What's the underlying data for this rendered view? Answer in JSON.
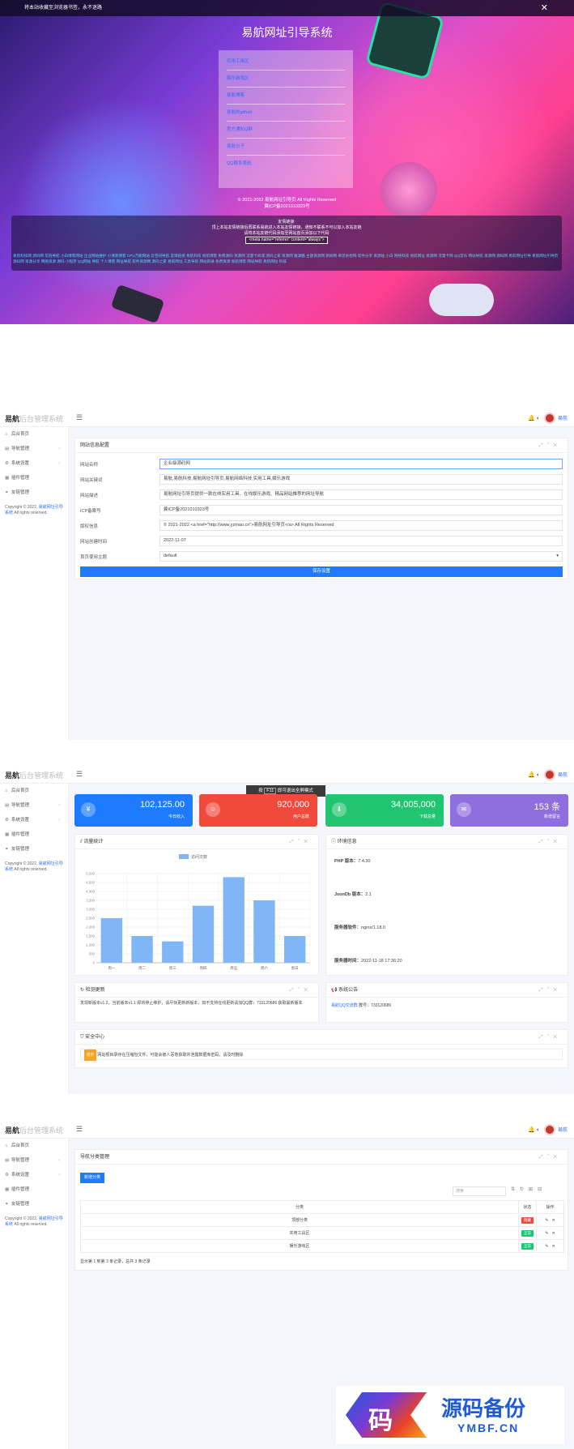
{
  "hero": {
    "topbar_text": "将本站收藏至浏览器书签，永不迷路",
    "close_label": "✕",
    "title": "易航网址引导系统",
    "nav_links": [
      "实用工具区",
      "娱乐游戏区",
      "易航博客",
      "易航的github",
      "官方通知Q群",
      "易航分子",
      "QQ联系易航"
    ],
    "copyright": "© 2021-2022 易航网址引导页 All Rights Reserved",
    "icp": "冀ICP备2021010323号",
    "notice_title": "友情链接:",
    "notice_line1": "顶上本站友情链接后再联系易航进入本站友情链接，通知不联系不可以加入本站友链",
    "notice_line2": "请将本站友链代码添加至网站首页添加以下代码",
    "notice_code": "<meta name=\"referrer\" content=\"always\">",
    "friend_links": "易航科技网 源码网 友链导航 小白博客网站 企业网站维护 小清新博客 CPU万能网站 云空间导航 友情链接 易航科技 易航博客 免费源码 资源网 流量卡商城 源码之家 资源网 雅源酷 主题资源网 新闻网 奇思妙想网 软件分享 资源站 小白 网络科技 易航网址 资源网 流量卡网 QQ音乐 网站导航 资源网 源码网 易航网址引导 易航网址引导页 源码网 资源分享 网络资源 源码 小程序 QQ网站 导航 个人博客 网址导航 软件资源网 源码之家 易航网址 工具导航 网站目录 免费资源 易航博客 网站导航 易航网址 科技"
  },
  "frame1": {
    "sidebar": [
      "后台首页",
      "导航管理",
      "系统设置",
      "插件管理",
      "友链管理"
    ],
    "footer": "Copyright © 2022,",
    "footer_link": "易航网址引导系统",
    "footer_rights": "All rights reserved.",
    "card_title": "网站信息配置",
    "fields": [
      {
        "label": "网站名称",
        "value": "企业级源码网"
      },
      {
        "label": "网站关键词",
        "value": "易航,易航科技,易航网址引导页,易航网络科技,实用工具,娱乐游戏"
      },
      {
        "label": "网站描述",
        "value": "易航网址引导页提供一款在线实用工具、在线娱乐游戏、精品网站推荐的网址导航"
      },
      {
        "label": "ICP备案号",
        "value": "冀ICP备2021010323号"
      },
      {
        "label": "版权信息",
        "value": "© 2021-2022 <a href=\"http://www.yzmao.cn\">易航网址引导页</a> All Rights Reserved"
      },
      {
        "label": "网站创建时间",
        "value": "2022-11-07"
      },
      {
        "label": "首页使用主题",
        "value": "default"
      }
    ],
    "save_label": "保存设置",
    "user": "易航"
  },
  "frame2": {
    "tooltip_prefix": "按",
    "tooltip_key": "F11",
    "tooltip_suffix": "即可退出全屏模式",
    "stats": [
      {
        "value": "102,125.00",
        "label": "今日收入",
        "color": "#1e7bff",
        "icon": "¥"
      },
      {
        "value": "920,000",
        "label": "用户总数",
        "color": "#ef4a3c",
        "icon": "☺"
      },
      {
        "value": "34,005,000",
        "label": "下载总量",
        "color": "#21c470",
        "icon": "⬇"
      },
      {
        "value": "153 条",
        "label": "新增留言",
        "color": "#8f6ee0",
        "icon": "✉"
      }
    ],
    "chart_card_title": "流量统计",
    "info_card_title": "环境信息",
    "info": [
      {
        "label": "PHP 版本：",
        "value": "7.4.30"
      },
      {
        "label": "JsonDb 版本：",
        "value": "2.1"
      },
      {
        "label": "服务器软件：",
        "value": "nginx/1.18.0"
      },
      {
        "label": "服务器时间：",
        "value": "2022-11-18 17:36:20"
      }
    ],
    "update_title": "检测更新",
    "update_text": "发现新版本v1.2，当前版本v1.1 即将停止维护，请尽快更新新版本，如不支持在线更新请加QQ群：733120686 获取最新版本",
    "announce_title": "系统公告",
    "announce_link": "易航QQ交流群",
    "announce_text": "群号：733120686",
    "security_title": "安全中心",
    "security_tag": "提示",
    "security_text": "网站根目录存在压缩包文件，可能会被人恶意获取并泄露数据库密码，请及时删除"
  },
  "chart_data": {
    "type": "bar",
    "title": "",
    "legend": [
      "访问次数"
    ],
    "categories": [
      "周一",
      "周二",
      "周三",
      "周四",
      "周五",
      "周六",
      "周日"
    ],
    "values": [
      2500,
      1500,
      1200,
      3200,
      4800,
      3500,
      1500
    ],
    "ylim": [
      0,
      5000
    ],
    "yticks": [
      "5,000",
      "4,500",
      "4,000",
      "3,500",
      "3,000",
      "2,500",
      "2,000",
      "1,500",
      "1,000",
      "500",
      "0"
    ],
    "color": "#80b6f6"
  },
  "frame3": {
    "card_title": "导航分类管理",
    "add_label": "新增分类",
    "search_placeholder": "搜索",
    "col_name": "分类",
    "col_status": "状态",
    "col_action": "操作",
    "rows": [
      {
        "name": "顶部分类",
        "status": "隐藏",
        "color": "#ef4a3c"
      },
      {
        "name": "实用工具区",
        "status": "正常",
        "color": "#21c470"
      },
      {
        "name": "娱乐游戏区",
        "status": "正常",
        "color": "#21c470"
      }
    ],
    "pager": "显示第 1 到第 3 条记录，总共 3 条记录"
  },
  "watermark": {
    "cn": "源码备份",
    "en": "YMBF.CN",
    "glyph": "码"
  }
}
